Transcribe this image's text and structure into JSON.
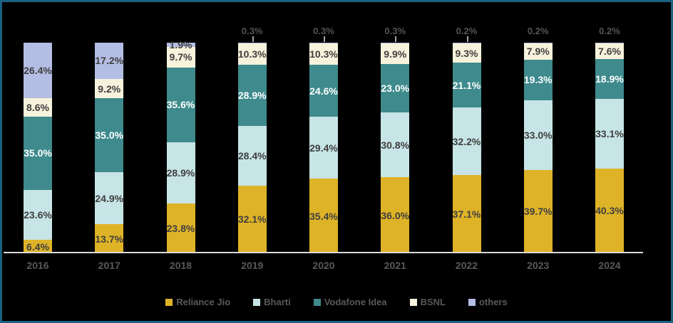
{
  "frame": {
    "background_color": "#000000",
    "border_color": "#1A6182"
  },
  "chart_data": {
    "type": "bar",
    "subtype": "stacked-percent",
    "title": "",
    "xlabel": "",
    "ylabel": "",
    "ylim": [
      0,
      100
    ],
    "grid": false,
    "legend_position": "bottom-center",
    "value_suffix": "%",
    "categories": [
      "2016",
      "2017",
      "2018",
      "2019",
      "2020",
      "2021",
      "2022",
      "2023",
      "2024"
    ],
    "series": [
      {
        "name": "Reliance Jio",
        "color": "#DFB327",
        "label_color": "#3F3F3F",
        "values": [
          6.4,
          13.7,
          23.8,
          32.1,
          35.4,
          36.0,
          37.1,
          39.7,
          40.3
        ]
      },
      {
        "name": "Bharti",
        "color": "#C7E4E6",
        "label_color": "#3F3F3F",
        "values": [
          23.6,
          24.9,
          28.9,
          28.4,
          29.4,
          30.8,
          32.2,
          33.0,
          33.1
        ]
      },
      {
        "name": "Vodafone Idea",
        "color": "#3E8A8C",
        "label_color": "#FFFFFF",
        "values": [
          35.0,
          35.0,
          35.6,
          28.9,
          24.6,
          23.0,
          21.1,
          19.3,
          18.9
        ]
      },
      {
        "name": "BSNL",
        "color": "#F7F2DC",
        "label_color": "#3F3F3F",
        "values": [
          8.6,
          9.2,
          9.7,
          10.3,
          10.3,
          9.9,
          9.3,
          7.9,
          7.6
        ]
      },
      {
        "name": "others",
        "color": "#B4BDE4",
        "label_color": "#3F3F3F",
        "values": [
          26.4,
          17.2,
          1.9,
          0.3,
          0.3,
          0.3,
          0.2,
          0.2,
          0.2
        ]
      }
    ],
    "outside_label_max": 0.5,
    "callout_leader_years": [
      "2019",
      "2020",
      "2021",
      "2022"
    ],
    "axis_color": "#D9D9D9",
    "tick_label_color": "#595959",
    "outside_label_color": "#545454",
    "leader_line_color": "#A6A6A6",
    "legend_text_color": "#595959"
  }
}
